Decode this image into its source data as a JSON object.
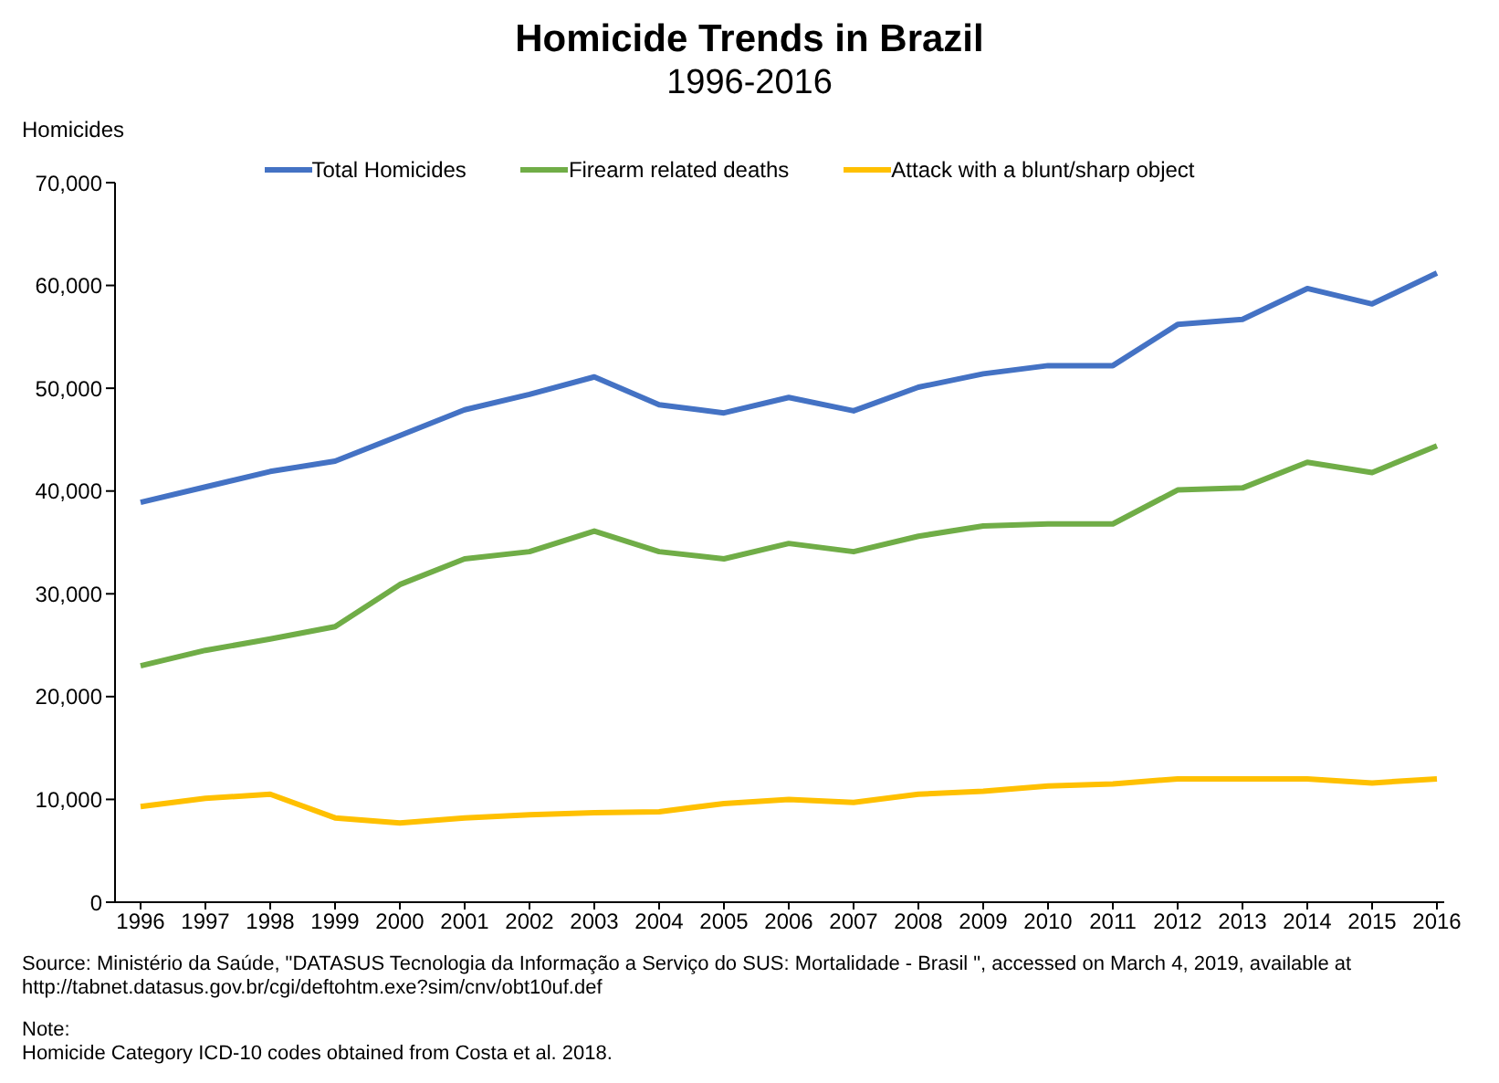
{
  "chart_data": {
    "type": "line",
    "title": "Homicide Trends in Brazil",
    "subtitle": "1996-2016",
    "ylabel": "Homicides",
    "categories": [
      "1996",
      "1997",
      "1998",
      "1999",
      "2000",
      "2001",
      "2002",
      "2003",
      "2004",
      "2005",
      "2006",
      "2007",
      "2008",
      "2009",
      "2010",
      "2011",
      "2012",
      "2013",
      "2014",
      "2015",
      "2016"
    ],
    "series": [
      {
        "name": "Total Homicides",
        "color": "#4472c4",
        "values": [
          38900,
          40400,
          41900,
          42900,
          45400,
          47900,
          49400,
          51100,
          48400,
          47600,
          49100,
          47800,
          50100,
          51400,
          52200,
          52200,
          56200,
          56700,
          59700,
          58200,
          61200
        ]
      },
      {
        "name": "Firearm related deaths",
        "color": "#70ad47",
        "values": [
          23000,
          24500,
          25600,
          26800,
          30900,
          33400,
          34100,
          36100,
          34100,
          33400,
          34900,
          34100,
          35600,
          36600,
          36800,
          36800,
          40100,
          40300,
          42800,
          41800,
          44400
        ]
      },
      {
        "name": "Attack with a blunt/sharp object",
        "color": "#ffc000",
        "values": [
          9300,
          10100,
          10500,
          8200,
          7700,
          8200,
          8500,
          8700,
          8800,
          9600,
          10000,
          9700,
          10500,
          10800,
          11300,
          11500,
          12000,
          12000,
          12000,
          11600,
          12000
        ]
      }
    ],
    "ylim": [
      0,
      70000
    ],
    "yticks": [
      0,
      {
        "value": 10000,
        "label": "10,000"
      },
      {
        "value": 20000,
        "label": "20,000"
      },
      {
        "value": 30000,
        "label": "30,000"
      },
      {
        "value": 40000,
        "label": "40,000"
      },
      {
        "value": 50000,
        "label": "50,000"
      },
      {
        "value": 60000,
        "label": "60,000"
      },
      {
        "value": 70000,
        "label": "70,000"
      }
    ],
    "grid": false,
    "legend": "top",
    "marker": "none",
    "line_style": "solid",
    "annotations": [
      "Source: Ministério da Saúde, \"DATASUS  Tecnologia da Informação a Serviço do SUS: Mortalidade - Brasil \", accessed on March 4, 2019, available at http://tabnet.datasus.gov.br/cgi/deftohtm.exe?sim/cnv/obt10uf.def",
      "Note:",
      "Homicide Category ICD-10 codes obtained from Costa et al. 2018."
    ]
  }
}
